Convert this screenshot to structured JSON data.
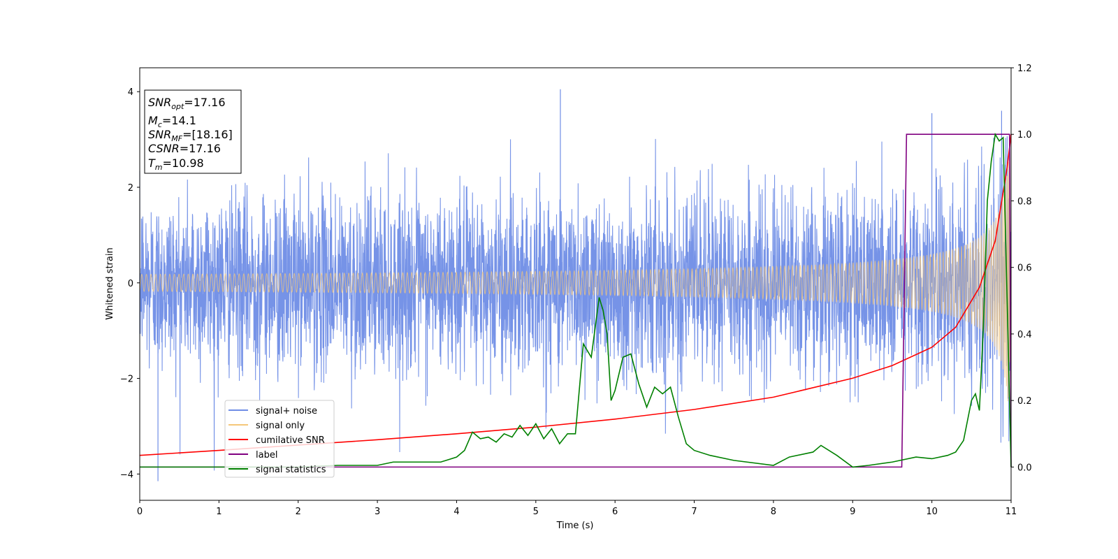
{
  "chart_data": {
    "type": "line",
    "xlabel": "Time (s)",
    "ylabel": "Whitened strain",
    "xlim": [
      0,
      11
    ],
    "ylim": [
      -4.55,
      4.5
    ],
    "ylim_right": [
      -0.1,
      1.2
    ],
    "x_ticks": [
      "0",
      "1",
      "2",
      "3",
      "4",
      "5",
      "6",
      "7",
      "8",
      "9",
      "10",
      "11"
    ],
    "y_ticks": [
      "-4",
      "-2",
      "0",
      "2",
      "4"
    ],
    "y_ticks_right": [
      "0.0",
      "0.2",
      "0.4",
      "0.6",
      "0.8",
      "1.0",
      "1.2"
    ],
    "grid": false,
    "legend_position": "lower-left",
    "annotation": [
      {
        "base": "SNR",
        "sub": "opt",
        "value": "=17.16"
      },
      {
        "base": "M",
        "sub": "c",
        "value": "=14.1"
      },
      {
        "base": "SNR",
        "sub": "MF",
        "value": "=[18.16]"
      },
      {
        "base": "CSNR",
        "sub": "",
        "value": "=17.16"
      },
      {
        "base": "T",
        "sub": "m",
        "value": "=10.98"
      }
    ],
    "series": [
      {
        "name": "signal+ noise",
        "color": "#6f8de6",
        "axis": "left",
        "noise_std": 0.9,
        "peak_max": 4.05,
        "peak_min": -4.15
      },
      {
        "name": "signal only",
        "color": "#f5c77a",
        "axis": "left",
        "merger_time": 10.98,
        "peak_amplitude": 3.1
      },
      {
        "name": "cumilative SNR",
        "color": "#ff0000",
        "axis": "right",
        "x": [
          0,
          1,
          2,
          3,
          4,
          5,
          6,
          7,
          8,
          9,
          9.5,
          10,
          10.3,
          10.6,
          10.8,
          10.95,
          11.0
        ],
        "y": [
          0.035,
          0.05,
          0.066,
          0.082,
          0.1,
          0.12,
          0.144,
          0.173,
          0.21,
          0.267,
          0.305,
          0.36,
          0.42,
          0.54,
          0.68,
          0.9,
          1.0
        ]
      },
      {
        "name": "label",
        "color": "#800080",
        "axis": "right",
        "x": [
          0,
          9.62,
          9.68,
          10.98,
          11.0
        ],
        "y": [
          0.0,
          0.0,
          1.0,
          1.0,
          0.0
        ]
      },
      {
        "name": "signal statistics",
        "color": "#008000",
        "axis": "right",
        "x": [
          0,
          1,
          2,
          2.5,
          3,
          3.2,
          3.5,
          3.8,
          4.0,
          4.1,
          4.2,
          4.3,
          4.4,
          4.5,
          4.6,
          4.7,
          4.8,
          4.9,
          5.0,
          5.1,
          5.2,
          5.3,
          5.4,
          5.5,
          5.6,
          5.7,
          5.8,
          5.85,
          5.9,
          5.95,
          6.0,
          6.1,
          6.2,
          6.3,
          6.4,
          6.5,
          6.6,
          6.7,
          6.8,
          6.9,
          7.0,
          7.2,
          7.5,
          8.0,
          8.2,
          8.5,
          8.6,
          8.8,
          9.0,
          9.2,
          9.5,
          9.8,
          10.0,
          10.2,
          10.3,
          10.4,
          10.5,
          10.55,
          10.6,
          10.65,
          10.7,
          10.75,
          10.8,
          10.85,
          10.9,
          10.95,
          11.0
        ],
        "y": [
          0.0,
          0.0,
          0.0,
          0.005,
          0.005,
          0.015,
          0.015,
          0.015,
          0.03,
          0.05,
          0.105,
          0.085,
          0.09,
          0.075,
          0.1,
          0.09,
          0.125,
          0.095,
          0.13,
          0.085,
          0.115,
          0.07,
          0.1,
          0.1,
          0.37,
          0.33,
          0.51,
          0.47,
          0.4,
          0.2,
          0.23,
          0.33,
          0.34,
          0.25,
          0.18,
          0.24,
          0.22,
          0.24,
          0.15,
          0.07,
          0.05,
          0.035,
          0.02,
          0.005,
          0.03,
          0.045,
          0.065,
          0.035,
          0.0,
          0.005,
          0.015,
          0.03,
          0.025,
          0.035,
          0.045,
          0.08,
          0.2,
          0.22,
          0.17,
          0.42,
          0.8,
          0.92,
          1.0,
          0.98,
          0.99,
          0.5,
          0.0
        ]
      }
    ]
  }
}
